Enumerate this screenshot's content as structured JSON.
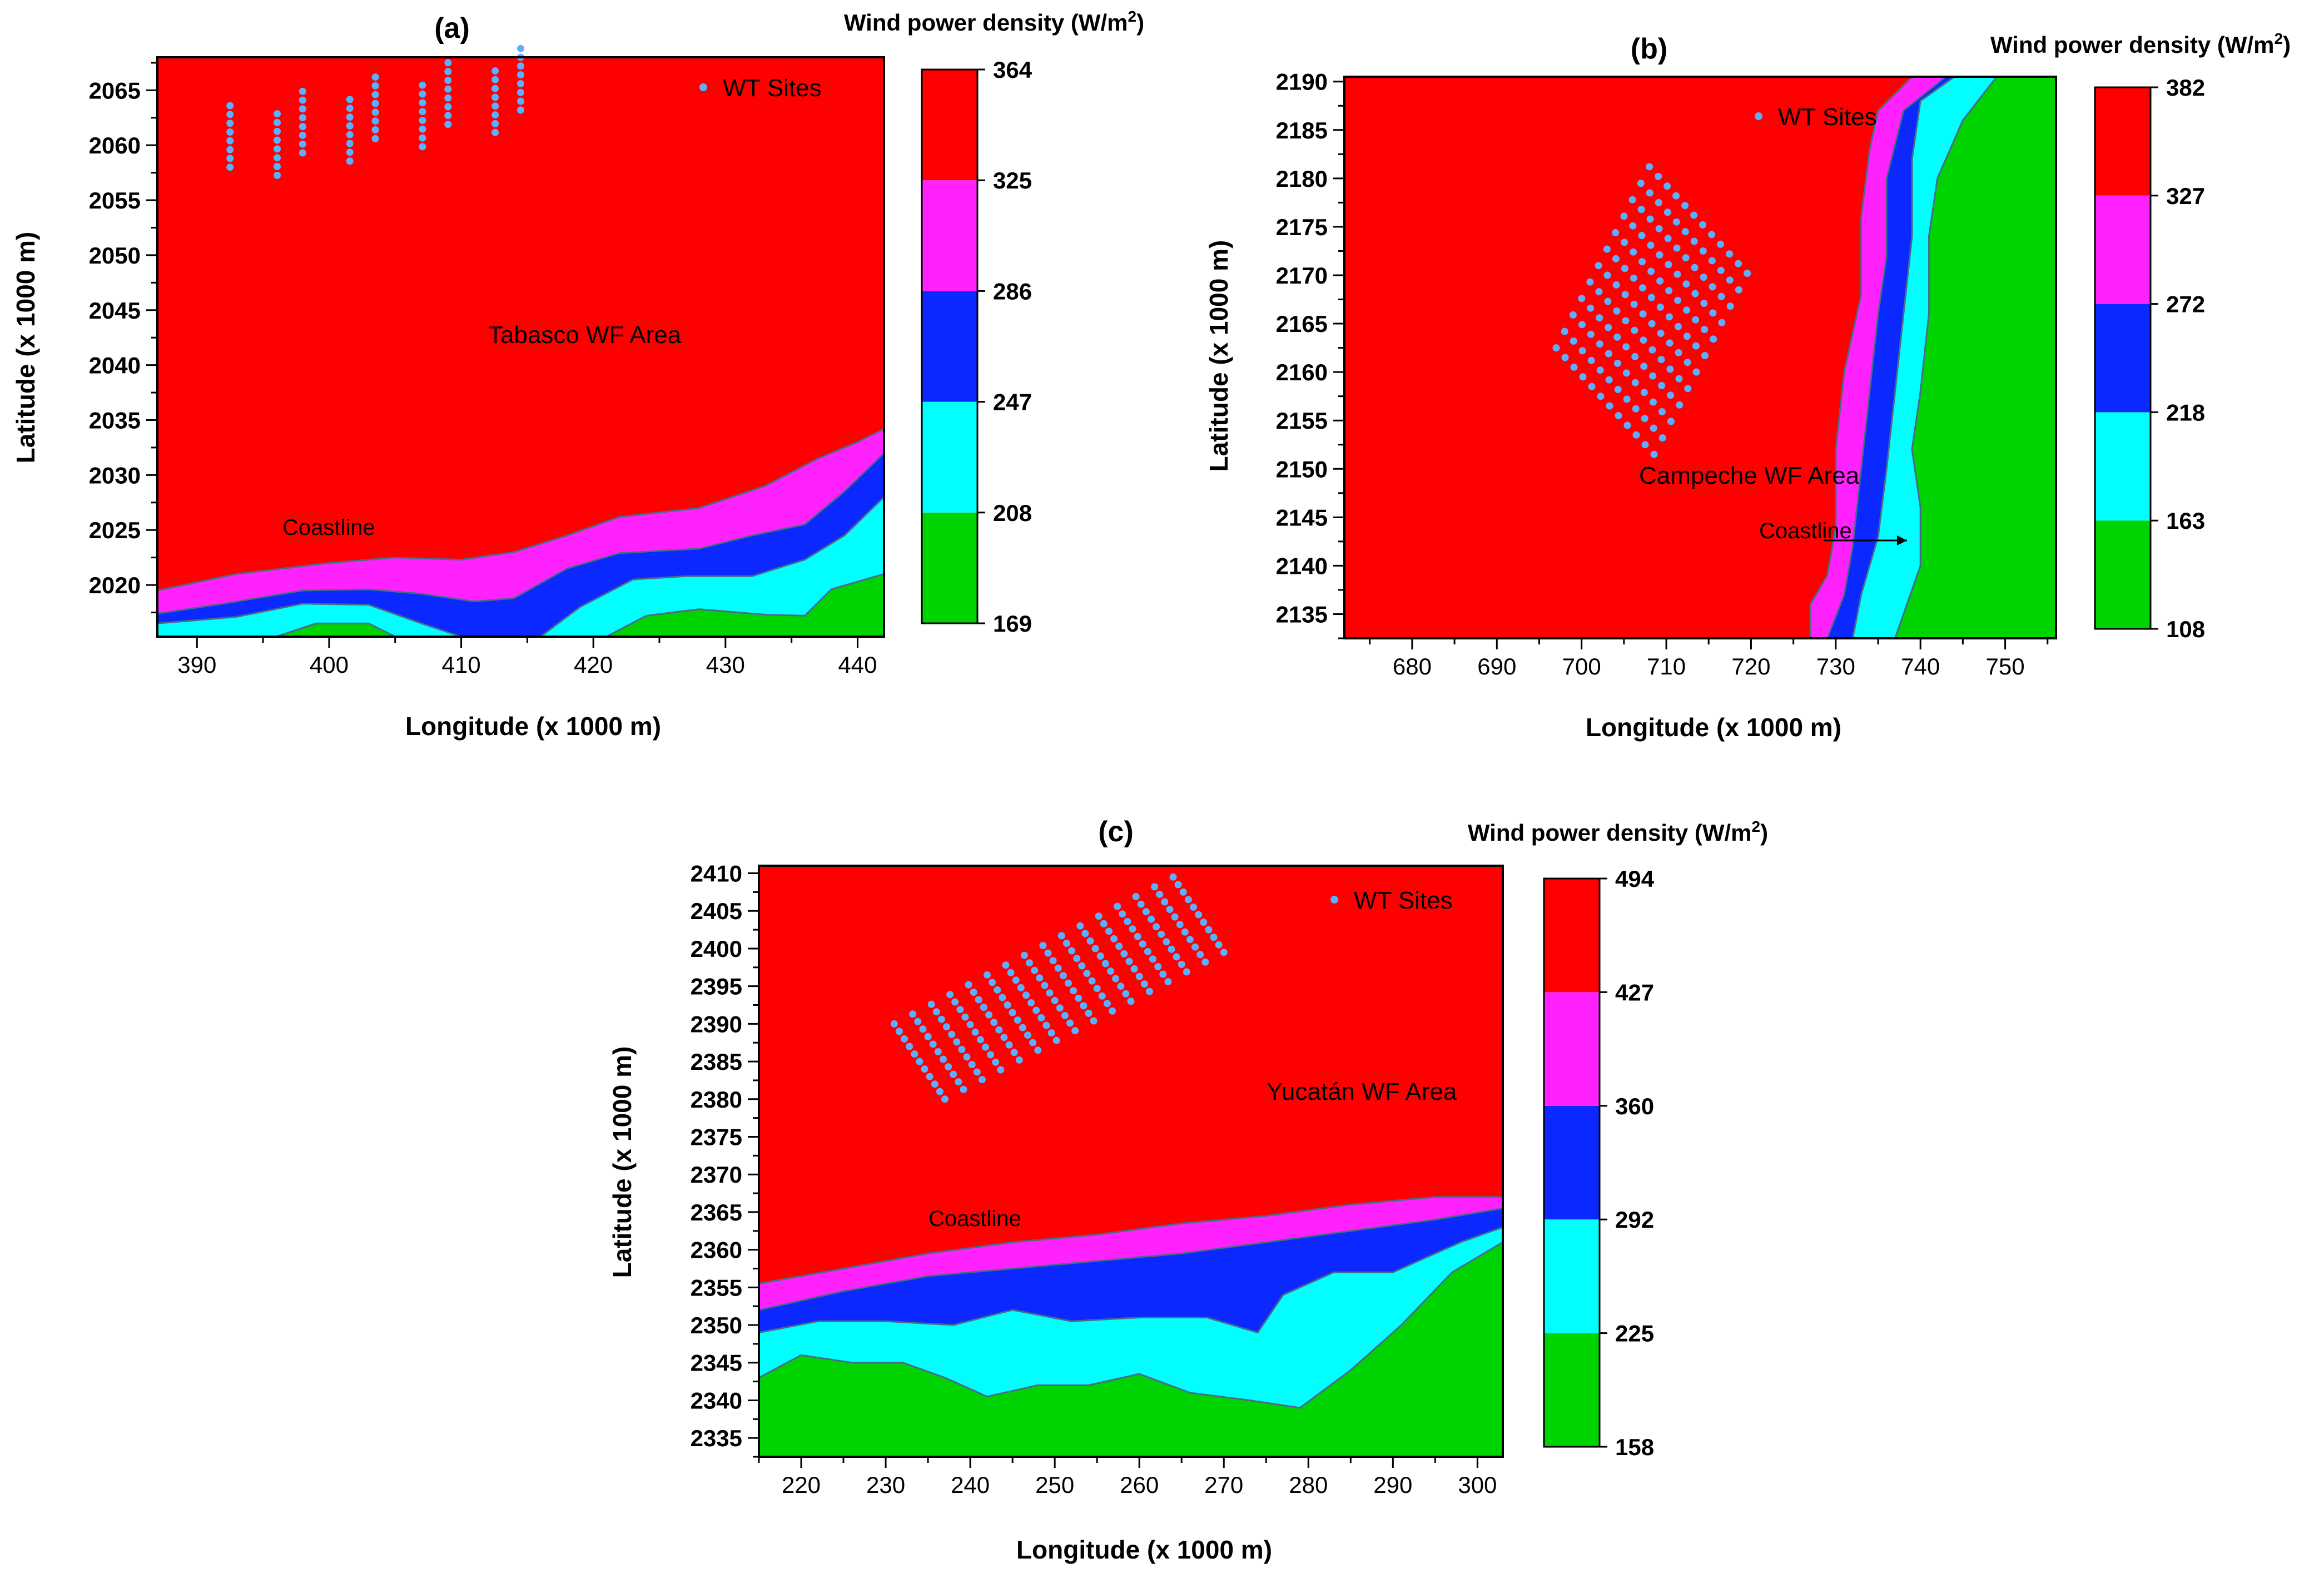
{
  "colors": {
    "level_colors": [
      "#00d400",
      "#00ffff",
      "#0a28ff",
      "#ff22ff",
      "#ff0000"
    ],
    "coast_line": "#4a6a8a",
    "site_marker": "#5ab0ff",
    "frame": "#000000"
  },
  "chart_data": [
    {
      "type": "contour",
      "panel_label": "(a)",
      "xlabel": "Longitude (x 1000 m)",
      "ylabel": "Latitude (x 1000 m)",
      "xlim": [
        387,
        442
      ],
      "ylim": [
        2015.3,
        2068
      ],
      "xticks": [
        390,
        400,
        410,
        420,
        430,
        440
      ],
      "yticks": [
        2020,
        2025,
        2030,
        2035,
        2040,
        2045,
        2050,
        2055,
        2060,
        2065
      ],
      "colorbar_title": "Wind power density (W/m",
      "colorbar_title_sup": "2",
      "colorbar_title_end": ")",
      "colorbar_levels": [
        169,
        208,
        247,
        286,
        325,
        364
      ],
      "legend_label": "WT Sites",
      "area_label": "Tabasco WF Area",
      "coast_label": "Coastline",
      "sites": {
        "rows": 8,
        "cols": 9,
        "origin": [
          392.5,
          2058.0
        ],
        "row_step": [
          0.0,
          0.8
        ],
        "col_step": [
          2.75,
          0.65
        ],
        "row_shift": [
          0.82,
          -1.39
        ],
        "count": 72
      },
      "bands": [
        [
          [
            387,
            2019.5
          ],
          [
            393,
            2021
          ],
          [
            400,
            2022
          ],
          [
            405,
            2022.5
          ],
          [
            410,
            2022.3
          ],
          [
            414,
            2023
          ],
          [
            418,
            2024.5
          ],
          [
            422,
            2026.2
          ],
          [
            428,
            2027
          ],
          [
            433,
            2029
          ],
          [
            437,
            2031.5
          ],
          [
            440,
            2033
          ],
          [
            442,
            2034.2
          ]
        ],
        [
          [
            387,
            2017.4
          ],
          [
            392,
            2018.3
          ],
          [
            398,
            2019.5
          ],
          [
            403,
            2019.6
          ],
          [
            407,
            2019.2
          ],
          [
            411,
            2018.5
          ],
          [
            414,
            2018.8
          ],
          [
            418,
            2021.5
          ],
          [
            422,
            2022.9
          ],
          [
            428,
            2023.3
          ],
          [
            432,
            2024.5
          ],
          [
            436,
            2025.5
          ],
          [
            439,
            2028.5
          ],
          [
            442,
            2032
          ]
        ],
        [
          [
            387,
            2016.5
          ],
          [
            393,
            2017.1
          ],
          [
            398,
            2018.3
          ],
          [
            403,
            2018.2
          ],
          [
            407,
            2016.5
          ],
          [
            410,
            2015.3
          ],
          [
            416,
            2015.3
          ],
          [
            419,
            2018
          ],
          [
            423,
            2020.5
          ],
          [
            427,
            2020.8
          ],
          [
            432,
            2020.8
          ],
          [
            436,
            2022.3
          ],
          [
            439,
            2024.5
          ],
          [
            442,
            2028
          ]
        ],
        [
          [
            387,
            2015.3
          ],
          [
            396,
            2015.3
          ],
          [
            399,
            2016.5
          ],
          [
            403,
            2016.5
          ],
          [
            405,
            2015.3
          ],
          [
            421,
            2015.3
          ],
          [
            424,
            2017.2
          ],
          [
            428,
            2017.8
          ],
          [
            433,
            2017.3
          ],
          [
            436,
            2017.2
          ],
          [
            438,
            2019.6
          ],
          [
            442,
            2021
          ]
        ]
      ]
    },
    {
      "type": "contour",
      "panel_label": "(b)",
      "xlabel": "Longitude (x 1000 m)",
      "ylabel": "Latitude (x 1000 m)",
      "xlim": [
        672,
        756
      ],
      "ylim": [
        2132.5,
        2190.5
      ],
      "xticks": [
        680,
        690,
        700,
        710,
        720,
        730,
        740,
        750
      ],
      "yticks": [
        2135,
        2140,
        2145,
        2150,
        2155,
        2160,
        2165,
        2170,
        2175,
        2180,
        2185,
        2190
      ],
      "colorbar_title": "Wind power density (W/m",
      "colorbar_title_sup": "2",
      "colorbar_title_end": ")",
      "colorbar_levels": [
        108,
        163,
        218,
        272,
        327,
        382
      ],
      "legend_label": "WT Sites",
      "area_label": "Campeche WF Area",
      "coast_label": "Coastline",
      "sites": {
        "rows": 12,
        "cols": 12,
        "origin": [
          697.0,
          2162.5
        ],
        "row_step": [
          1.0,
          1.7
        ],
        "col_step": [
          1.05,
          -1.0
        ],
        "row_shift": [
          0.0,
          0.0
        ],
        "count": 144
      },
      "bands": [
        [
          [
            739,
            2190.5
          ],
          [
            735,
            2187
          ],
          [
            734,
            2183
          ],
          [
            733,
            2176
          ],
          [
            733,
            2168
          ],
          [
            731,
            2160
          ],
          [
            730,
            2152
          ],
          [
            730,
            2144
          ],
          [
            729,
            2139
          ],
          [
            727,
            2136
          ],
          [
            727,
            2132.5
          ]
        ],
        [
          [
            743,
            2190.5
          ],
          [
            738,
            2187
          ],
          [
            736,
            2180
          ],
          [
            736,
            2172
          ],
          [
            735,
            2166
          ],
          [
            734,
            2158
          ],
          [
            733,
            2150
          ],
          [
            732,
            2142
          ],
          [
            731,
            2137
          ],
          [
            729,
            2132.5
          ]
        ],
        [
          [
            744,
            2190.5
          ],
          [
            740,
            2188
          ],
          [
            739,
            2182
          ],
          [
            739,
            2174
          ],
          [
            738,
            2166
          ],
          [
            737,
            2158
          ],
          [
            736,
            2150
          ],
          [
            735,
            2143
          ],
          [
            733,
            2137
          ],
          [
            732,
            2132.5
          ]
        ],
        [
          [
            749,
            2190.5
          ],
          [
            745,
            2186
          ],
          [
            742,
            2180
          ],
          [
            741,
            2174
          ],
          [
            741,
            2166
          ],
          [
            740,
            2158
          ],
          [
            739,
            2152
          ],
          [
            740,
            2146
          ],
          [
            740,
            2140
          ],
          [
            738,
            2135
          ],
          [
            737,
            2132.5
          ]
        ]
      ]
    },
    {
      "type": "contour",
      "panel_label": "(c)",
      "xlabel": "Longitude (x 1000 m)",
      "ylabel": "Latitude (x 1000 m)",
      "xlim": [
        215,
        303
      ],
      "ylim": [
        2332.5,
        2411
      ],
      "xticks": [
        220,
        230,
        240,
        250,
        260,
        270,
        280,
        290,
        300
      ],
      "yticks": [
        2335,
        2340,
        2345,
        2350,
        2355,
        2360,
        2365,
        2370,
        2375,
        2380,
        2385,
        2390,
        2395,
        2400,
        2405,
        2410
      ],
      "colorbar_title": "Wind power density (W/m",
      "colorbar_title_sup": "2",
      "colorbar_title_end": ")",
      "colorbar_levels": [
        158,
        225,
        292,
        360,
        427,
        494
      ],
      "legend_label": "WT Sites",
      "area_label": "Yucatán WF Area",
      "coast_label": "Coastline",
      "sites": {
        "rows": 16,
        "cols": 11,
        "origin": [
          231.0,
          2390.0
        ],
        "row_step": [
          2.2,
          1.3
        ],
        "col_step": [
          0.6,
          -1.0
        ],
        "row_shift": [
          0.0,
          0.0
        ],
        "count": 176
      },
      "bands": [
        [
          [
            215,
            2355.5
          ],
          [
            225,
            2357.5
          ],
          [
            235,
            2359.5
          ],
          [
            245,
            2361
          ],
          [
            255,
            2362
          ],
          [
            265,
            2363.5
          ],
          [
            275,
            2364.5
          ],
          [
            285,
            2366
          ],
          [
            295,
            2367
          ],
          [
            303,
            2367
          ]
        ],
        [
          [
            215,
            2352
          ],
          [
            225,
            2354.5
          ],
          [
            235,
            2356.5
          ],
          [
            245,
            2357.5
          ],
          [
            255,
            2358.5
          ],
          [
            265,
            2359.5
          ],
          [
            275,
            2361
          ],
          [
            285,
            2362.5
          ],
          [
            295,
            2364
          ],
          [
            303,
            2365.5
          ]
        ],
        [
          [
            215,
            2349
          ],
          [
            222,
            2350.5
          ],
          [
            230,
            2350.5
          ],
          [
            238,
            2350
          ],
          [
            245,
            2352
          ],
          [
            252,
            2350.5
          ],
          [
            260,
            2351
          ],
          [
            268,
            2351
          ],
          [
            274,
            2349
          ],
          [
            277,
            2354
          ],
          [
            283,
            2357
          ],
          [
            290,
            2357
          ],
          [
            298,
            2361
          ],
          [
            303,
            2363
          ]
        ],
        [
          [
            215,
            2343
          ],
          [
            220,
            2346
          ],
          [
            226,
            2345
          ],
          [
            232,
            2345
          ],
          [
            237,
            2343
          ],
          [
            242,
            2340.5
          ],
          [
            248,
            2342
          ],
          [
            254,
            2342
          ],
          [
            260,
            2343.5
          ],
          [
            266,
            2341
          ],
          [
            273,
            2340
          ],
          [
            279,
            2339
          ],
          [
            285,
            2344
          ],
          [
            291,
            2350
          ],
          [
            297,
            2357
          ],
          [
            303,
            2361
          ]
        ]
      ]
    }
  ]
}
